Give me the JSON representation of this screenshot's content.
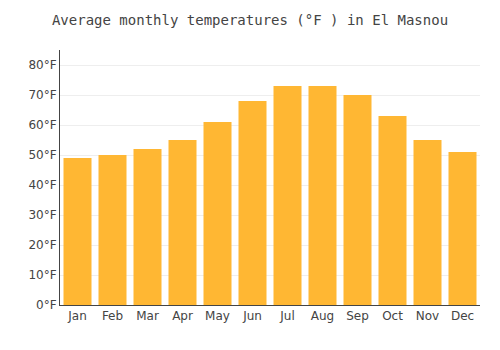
{
  "chart_data": {
    "type": "bar",
    "title": "Average monthly temperatures (°F ) in El Masnou",
    "categories": [
      "Jan",
      "Feb",
      "Mar",
      "Apr",
      "May",
      "Jun",
      "Jul",
      "Aug",
      "Sep",
      "Oct",
      "Nov",
      "Dec"
    ],
    "values": [
      49,
      50,
      52,
      55,
      61,
      68,
      73,
      73,
      70,
      63,
      55,
      51
    ],
    "color": "#FFB733",
    "ylim": [
      0,
      85
    ],
    "yticks": [
      {
        "value": 0,
        "label": "0°F"
      },
      {
        "value": 10,
        "label": "10°F"
      },
      {
        "value": 20,
        "label": "20°F"
      },
      {
        "value": 30,
        "label": "30°F"
      },
      {
        "value": 40,
        "label": "40°F"
      },
      {
        "value": 50,
        "label": "50°F"
      },
      {
        "value": 60,
        "label": "60°F"
      },
      {
        "value": 70,
        "label": "70°F"
      },
      {
        "value": 80,
        "label": "80°F"
      }
    ],
    "grid": true
  }
}
